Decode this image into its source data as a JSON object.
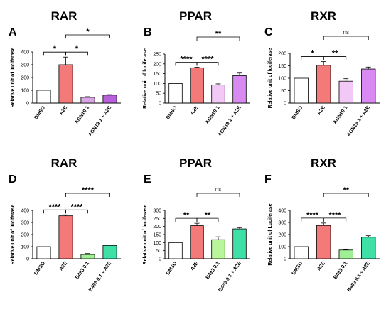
{
  "chart_data": [
    {
      "type": "bar",
      "panel": "A",
      "title": "RAR",
      "ylabel": "Relative unit of luciferase",
      "categories": [
        "DMSO",
        "A2E",
        "AGN19 1",
        "AGN19 1 + A2E"
      ],
      "values": [
        100,
        300,
        45,
        62
      ],
      "errors": [
        0,
        60,
        5,
        4
      ],
      "ylim": [
        0,
        400
      ],
      "yticks": [
        0,
        100,
        200,
        300,
        400
      ],
      "colors": [
        "#ffffff",
        "#f47a7a",
        "#d8a6e4",
        "#b85fdc"
      ],
      "comparisons": [
        {
          "from": 1,
          "to": 2,
          "label": "*"
        },
        {
          "from": 0,
          "to": 1,
          "label": "*"
        },
        {
          "from": 1,
          "to": 3,
          "label": "*"
        }
      ]
    },
    {
      "type": "bar",
      "panel": "B",
      "title": "PPAR",
      "ylabel": "Relative unit of luciferase",
      "categories": [
        "DMSO",
        "A2E",
        "AGN19 1",
        "AGN19 1 + A2E"
      ],
      "values": [
        100,
        180,
        92,
        140
      ],
      "errors": [
        0,
        3,
        6,
        13
      ],
      "ylim": [
        0,
        250
      ],
      "yticks": [
        0,
        50,
        100,
        150,
        200,
        250
      ],
      "colors": [
        "#ffffff",
        "#f47a7a",
        "#f1c8f6",
        "#d88af2"
      ],
      "comparisons": [
        {
          "from": 0,
          "to": 1,
          "label": "****"
        },
        {
          "from": 1,
          "to": 2,
          "label": "****"
        },
        {
          "from": 1,
          "to": 3,
          "label": "**"
        }
      ]
    },
    {
      "type": "bar",
      "panel": "C",
      "title": "RXR",
      "ylabel": "Relative unit of luciferase",
      "categories": [
        "DMSO",
        "A2E",
        "AGN19 1",
        "AGN19 1 + A2E"
      ],
      "values": [
        100,
        152,
        88,
        137
      ],
      "errors": [
        0,
        15,
        10,
        8
      ],
      "ylim": [
        0,
        200
      ],
      "yticks": [
        0,
        50,
        100,
        150,
        200
      ],
      "colors": [
        "#ffffff",
        "#f47a7a",
        "#f1c8f6",
        "#d88af2"
      ],
      "comparisons": [
        {
          "from": 0,
          "to": 1,
          "label": "*"
        },
        {
          "from": 1,
          "to": 2,
          "label": "**"
        },
        {
          "from": 1,
          "to": 3,
          "label": "ns"
        }
      ]
    },
    {
      "type": "bar",
      "panel": "D",
      "title": "RAR",
      "ylabel": "Relative unit of luciferase",
      "categories": [
        "DMSO",
        "A2E",
        "B493 0.1",
        "B493 0.1 + A2E"
      ],
      "values": [
        100,
        355,
        35,
        110
      ],
      "errors": [
        0,
        8,
        8,
        3
      ],
      "ylim": [
        0,
        400
      ],
      "yticks": [
        0,
        100,
        200,
        300,
        400
      ],
      "colors": [
        "#ffffff",
        "#f47a7a",
        "#9ff095",
        "#3fe0a6"
      ],
      "comparisons": [
        {
          "from": 0,
          "to": 1,
          "label": "****"
        },
        {
          "from": 1,
          "to": 2,
          "label": "****"
        },
        {
          "from": 1,
          "to": 3,
          "label": "****"
        }
      ]
    },
    {
      "type": "bar",
      "panel": "E",
      "title": "PPAR",
      "ylabel": "Relative unit of luciferase",
      "categories": [
        "DMSO",
        "A2E",
        "B493 0.1",
        "B493 0.1 + A2E"
      ],
      "values": [
        100,
        205,
        118,
        185
      ],
      "errors": [
        0,
        15,
        18,
        8
      ],
      "ylim": [
        0,
        300
      ],
      "yticks": [
        0,
        50,
        100,
        150,
        200,
        250,
        300
      ],
      "colors": [
        "#ffffff",
        "#f47a7a",
        "#b8f59b",
        "#3fe0a6"
      ],
      "comparisons": [
        {
          "from": 0,
          "to": 1,
          "label": "**"
        },
        {
          "from": 1,
          "to": 2,
          "label": "**"
        },
        {
          "from": 1,
          "to": 3,
          "label": "ns"
        }
      ]
    },
    {
      "type": "bar",
      "panel": "F",
      "title": "RXR",
      "ylabel": "Relative unit of Luciferase",
      "categories": [
        "DMSO",
        "A2E",
        "B493 0.1",
        "B493 0.1 + A2E"
      ],
      "values": [
        100,
        275,
        72,
        178
      ],
      "errors": [
        0,
        20,
        4,
        12
      ],
      "ylim": [
        0,
        400
      ],
      "yticks": [
        0,
        100,
        200,
        300,
        400
      ],
      "colors": [
        "#ffffff",
        "#f47a7a",
        "#9ff095",
        "#3fe0a6"
      ],
      "comparisons": [
        {
          "from": 0,
          "to": 1,
          "label": "****"
        },
        {
          "from": 1,
          "to": 2,
          "label": "****"
        },
        {
          "from": 1,
          "to": 3,
          "label": "**"
        }
      ]
    }
  ]
}
